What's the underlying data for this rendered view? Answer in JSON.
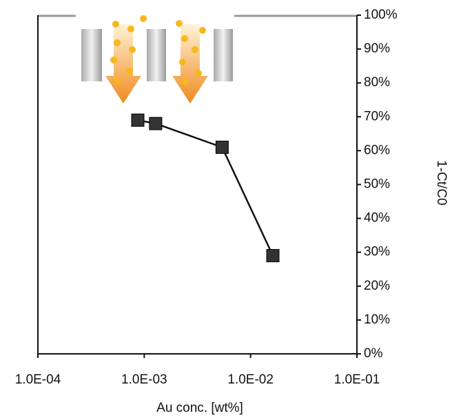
{
  "chart_data": {
    "type": "line",
    "x": [
      0.00087,
      0.00128,
      0.0054,
      0.0162
    ],
    "values": [
      69,
      68,
      61,
      29
    ],
    "color": "#333333",
    "line_color": "#111111",
    "x_label": "Au conc. [wt%]",
    "y_label": "1-Ct/C0",
    "x_log": true,
    "xlim": [
      0.0001,
      0.1
    ],
    "xticks": [
      {
        "value": 0.0001,
        "label": "1.0E-04"
      },
      {
        "value": 0.001,
        "label": "1.0E-03"
      },
      {
        "value": 0.01,
        "label": "1.0E-02"
      },
      {
        "value": 0.1,
        "label": "1.0E-01"
      }
    ],
    "ylim": [
      0,
      100
    ],
    "yticks": [
      {
        "value": 0,
        "label": "0%"
      },
      {
        "value": 10,
        "label": "10%"
      },
      {
        "value": 20,
        "label": "20%"
      },
      {
        "value": 30,
        "label": "30%"
      },
      {
        "value": 40,
        "label": "40%"
      },
      {
        "value": 50,
        "label": "50%"
      },
      {
        "value": 60,
        "label": "60%"
      },
      {
        "value": 70,
        "label": "70%"
      },
      {
        "value": 80,
        "label": "80%"
      },
      {
        "value": 90,
        "label": "90%"
      },
      {
        "value": 100,
        "label": "100%"
      }
    ]
  }
}
